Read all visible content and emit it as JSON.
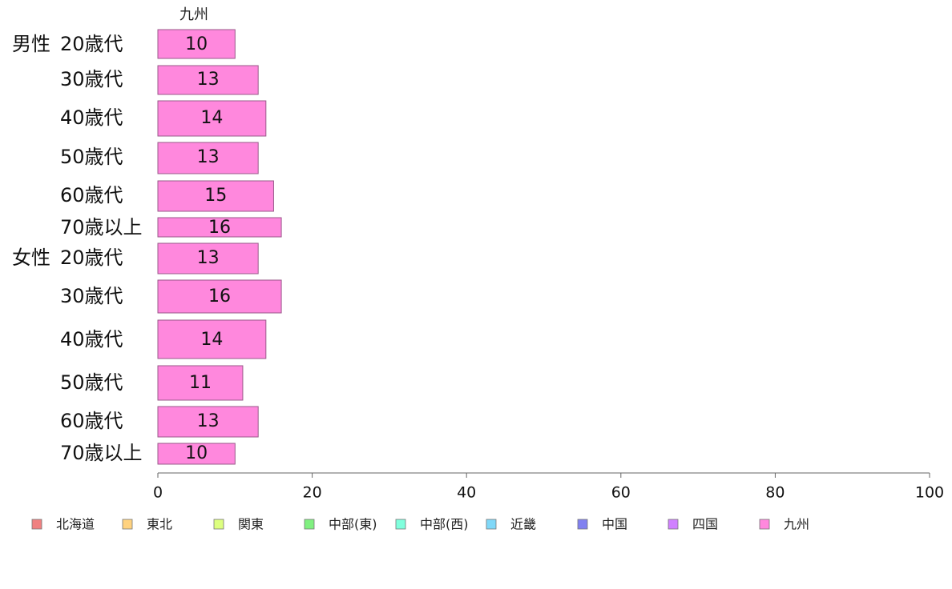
{
  "chart_data": {
    "type": "bar",
    "orientation": "horizontal",
    "column_header": "九州",
    "groups": [
      {
        "label": "男性",
        "rows": [
          {
            "category": "20歳代",
            "value": 10
          },
          {
            "category": "30歳代",
            "value": 13
          },
          {
            "category": "40歳代",
            "value": 14
          },
          {
            "category": "50歳代",
            "value": 13
          },
          {
            "category": "60歳代",
            "value": 15
          },
          {
            "category": "70歳以上",
            "value": 16
          }
        ]
      },
      {
        "label": "女性",
        "rows": [
          {
            "category": "20歳代",
            "value": 13
          },
          {
            "category": "30歳代",
            "value": 16
          },
          {
            "category": "40歳代",
            "value": 14
          },
          {
            "category": "50歳代",
            "value": 11
          },
          {
            "category": "60歳代",
            "value": 13
          },
          {
            "category": "70歳以上",
            "value": 10
          }
        ]
      }
    ],
    "x_ticks": [
      0,
      20,
      40,
      60,
      80,
      100
    ],
    "xlim": [
      0,
      100
    ],
    "grid": false,
    "bar_color": "#ff88dd",
    "legend_position": "bottom",
    "legend": [
      {
        "label": "北海道",
        "color": "#f08080"
      },
      {
        "label": "東北",
        "color": "#ffd27f"
      },
      {
        "label": "関東",
        "color": "#ddff80"
      },
      {
        "label": "中部(東)",
        "color": "#80f080"
      },
      {
        "label": "中部(西)",
        "color": "#80ffdd"
      },
      {
        "label": "近畿",
        "color": "#80d8f8"
      },
      {
        "label": "中国",
        "color": "#8080f0"
      },
      {
        "label": "四国",
        "color": "#d080ff"
      },
      {
        "label": "九州",
        "color": "#ff88dd"
      }
    ]
  }
}
